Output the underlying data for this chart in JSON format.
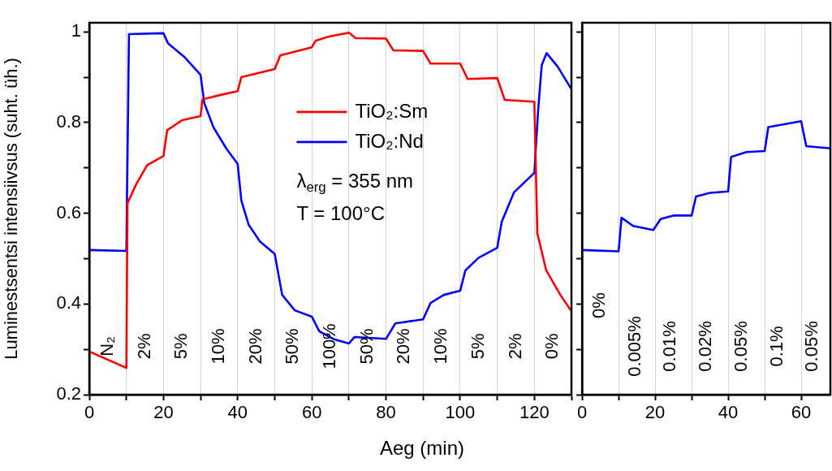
{
  "chart_data": [
    {
      "type": "line",
      "xlabel": "Aeg (min)",
      "ylabel": "Luminestsentsi intensiivsus (suht. üh.)",
      "xlim": [
        0,
        130
      ],
      "ylim": [
        0.2,
        1.02
      ],
      "xticks": [
        0,
        {
          "value": 10,
          "label": null
        },
        20,
        {
          "value": 30,
          "label": null
        },
        40,
        {
          "value": 50,
          "label": null
        },
        60,
        {
          "value": 70,
          "label": null
        },
        80,
        {
          "value": 90,
          "label": null
        },
        100,
        {
          "value": 110,
          "label": null
        },
        120,
        {
          "value": 130,
          "label": null
        }
      ],
      "yticks": [
        0.2,
        {
          "value": 0.3,
          "label": null
        },
        0.4,
        {
          "value": 0.5,
          "label": null
        },
        0.6,
        {
          "value": 0.7,
          "label": null
        },
        0.8,
        {
          "value": 0.9,
          "label": null
        },
        1.0
      ],
      "grid": "x",
      "legend": "top",
      "line_style": "solid",
      "series": [
        {
          "name": "TiO₂:Sm",
          "color": "#ff0000",
          "x": [
            0,
            10,
            10.3,
            12.6,
            15.6,
            20,
            21,
            25,
            30,
            30.5,
            35,
            40,
            41,
            50,
            51.5,
            60,
            61,
            64.4,
            70,
            71.8,
            80,
            82,
            90,
            92,
            100,
            102,
            110,
            112,
            120,
            120.8,
            123.2,
            127,
            129.5,
            130
          ],
          "values": [
            0.295,
            0.259,
            0.622,
            0.663,
            0.706,
            0.726,
            0.783,
            0.805,
            0.814,
            0.851,
            0.86,
            0.869,
            0.9,
            0.918,
            0.948,
            0.966,
            0.98,
            0.989,
            0.998,
            0.986,
            0.985,
            0.959,
            0.958,
            0.93,
            0.93,
            0.896,
            0.898,
            0.85,
            0.846,
            0.556,
            0.474,
            0.42,
            0.39,
            0.385
          ]
        },
        {
          "name": "TiO₂:Nd",
          "color": "#0000ff",
          "x": [
            0,
            10,
            10.7,
            20,
            21.2,
            25.6,
            30,
            31,
            33.5,
            37,
            40,
            41,
            43,
            46,
            50,
            52,
            55.4,
            60,
            62,
            66,
            70,
            71.5,
            80,
            82.5,
            90,
            92,
            95.6,
            100,
            101.4,
            105,
            110,
            111.2,
            114.5,
            120,
            121,
            122,
            123.3,
            126.3,
            129.8,
            130
          ],
          "values": [
            0.519,
            0.517,
            0.995,
            0.997,
            0.975,
            0.945,
            0.905,
            0.843,
            0.789,
            0.742,
            0.709,
            0.628,
            0.574,
            0.538,
            0.51,
            0.42,
            0.386,
            0.372,
            0.34,
            0.322,
            0.313,
            0.327,
            0.323,
            0.357,
            0.366,
            0.402,
            0.42,
            0.429,
            0.474,
            0.502,
            0.524,
            0.581,
            0.646,
            0.689,
            0.825,
            0.927,
            0.953,
            0.923,
            0.876,
            0.875
          ]
        }
      ],
      "annotations": [
        "λ$_{erg}$ = 355 nm",
        "T = 100°C",
        "N₂",
        "2%",
        "5%",
        "10%",
        "20%",
        "50%",
        "100%",
        "50%",
        "20%",
        "10%",
        "5%",
        "2%",
        "0%"
      ]
    },
    {
      "type": "line",
      "xlim": [
        0,
        68
      ],
      "ylim": [
        0.2,
        1.02
      ],
      "xticks": [
        0,
        {
          "value": 10,
          "label": null
        },
        20,
        {
          "value": 30,
          "label": null
        },
        40,
        {
          "value": 50,
          "label": null
        },
        60
      ],
      "yticks": [
        0.2,
        {
          "value": 0.3,
          "label": null
        },
        0.4,
        {
          "value": 0.5,
          "label": null
        },
        0.6,
        {
          "value": 0.7,
          "label": null
        },
        0.8,
        {
          "value": 0.9,
          "label": null
        },
        1.0
      ],
      "grid": "x",
      "tick_labels": "x",
      "line_style": "solid",
      "series": [
        {
          "color": "#0000ff",
          "x": [
            0,
            10,
            10.8,
            14,
            19.5,
            21.5,
            25,
            30,
            31.2,
            35,
            40,
            40.8,
            45,
            50,
            51,
            60,
            61.4,
            68
          ],
          "values": [
            0.519,
            0.516,
            0.59,
            0.572,
            0.563,
            0.587,
            0.595,
            0.595,
            0.637,
            0.645,
            0.648,
            0.724,
            0.735,
            0.737,
            0.79,
            0.803,
            0.748,
            0.743
          ]
        }
      ],
      "annotations": [
        "0%",
        "0.005%",
        "0.01%",
        "0.02%",
        "0.05%",
        "0.1%",
        "0.05%"
      ]
    }
  ]
}
